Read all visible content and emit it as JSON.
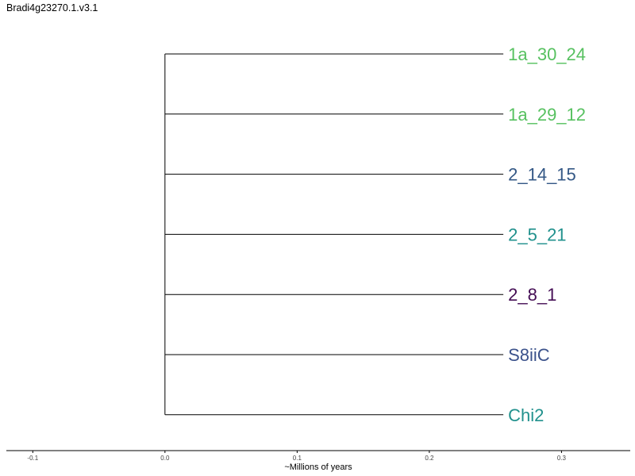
{
  "title": "Bradi4g23270.1.v3.1",
  "chart_data": {
    "type": "dendrogram",
    "orientation": "left-to-right",
    "leaves": [
      {
        "label": "1a_30_24",
        "color": "#57c160",
        "branch_length": 0.256
      },
      {
        "label": "1a_29_12",
        "color": "#57c160",
        "branch_length": 0.256
      },
      {
        "label": "2_14_15",
        "color": "#345886",
        "branch_length": 0.256
      },
      {
        "label": "2_5_21",
        "color": "#21918d",
        "branch_length": 0.256
      },
      {
        "label": "2_8_1",
        "color": "#440d54",
        "branch_length": 0.256
      },
      {
        "label": "S8iiC",
        "color": "#3b528b",
        "branch_length": 0.256
      },
      {
        "label": "Chi2",
        "color": "#21918d",
        "branch_length": 0.256
      }
    ],
    "root_x": 0.0,
    "xlabel": "~Millions of years",
    "xlim": [
      -0.12,
      0.352
    ],
    "xticks": [
      -0.1,
      0.0,
      0.1,
      0.2,
      0.3
    ],
    "xtick_labels": [
      "-0.1",
      "0.0",
      "0.1",
      "0.2",
      "0.3"
    ],
    "line_color": "#000000",
    "grid": false
  }
}
